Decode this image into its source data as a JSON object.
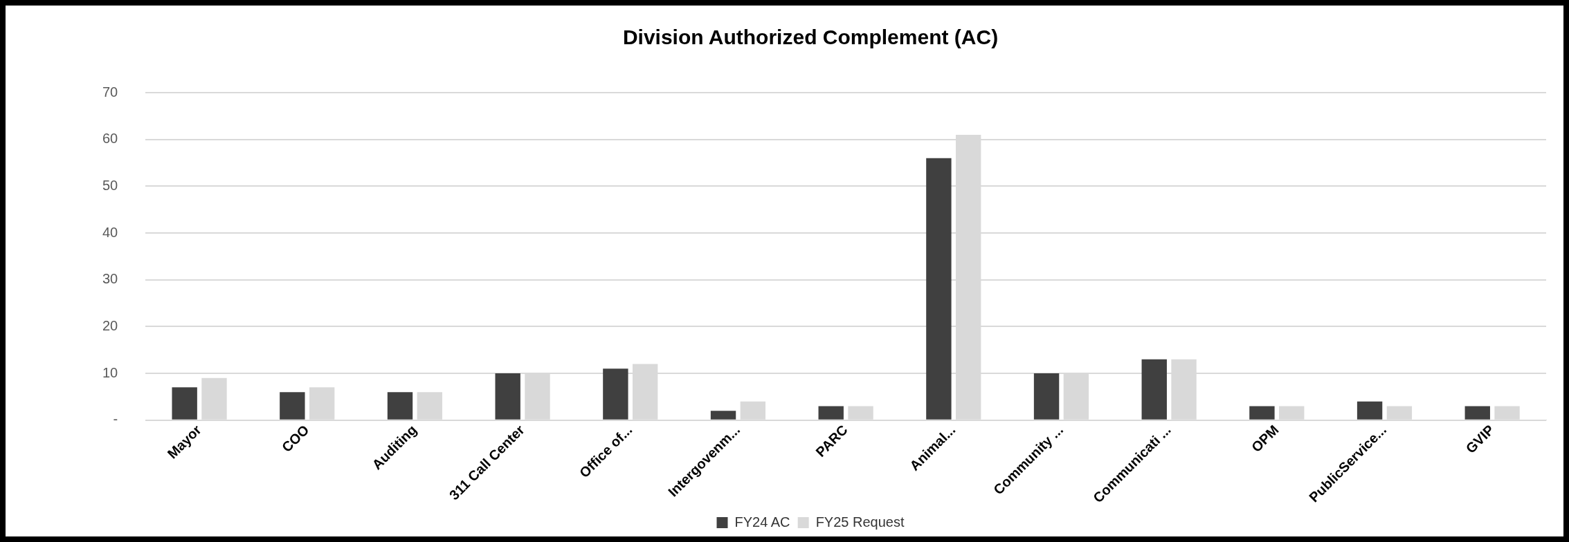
{
  "chart_data": {
    "type": "bar",
    "title": "Division Authorized Complement (AC)",
    "categories": [
      "Mayor",
      "COO",
      "Auditing",
      "311 Call Center",
      "Office of...",
      "Intergovenm...",
      "PARC",
      "Animal...",
      "Community ...",
      "Communicati ...",
      "OPM",
      "PublicService...",
      "GVIP"
    ],
    "series": [
      {
        "name": "FY24 AC",
        "color": "#404040",
        "values": [
          7,
          6,
          6,
          10,
          11,
          2,
          3,
          56,
          10,
          13,
          3,
          4,
          3
        ]
      },
      {
        "name": "FY25 Request",
        "color": "#d9d9d9",
        "values": [
          9,
          7,
          6,
          10,
          12,
          4,
          3,
          61,
          10,
          13,
          3,
          3,
          3
        ]
      }
    ],
    "ylim": [
      0,
      70
    ],
    "yticks": [
      {
        "value": 0,
        "label": "-"
      },
      10,
      20,
      30,
      40,
      50,
      60,
      70
    ],
    "grid": "y",
    "legend": "bottom"
  }
}
